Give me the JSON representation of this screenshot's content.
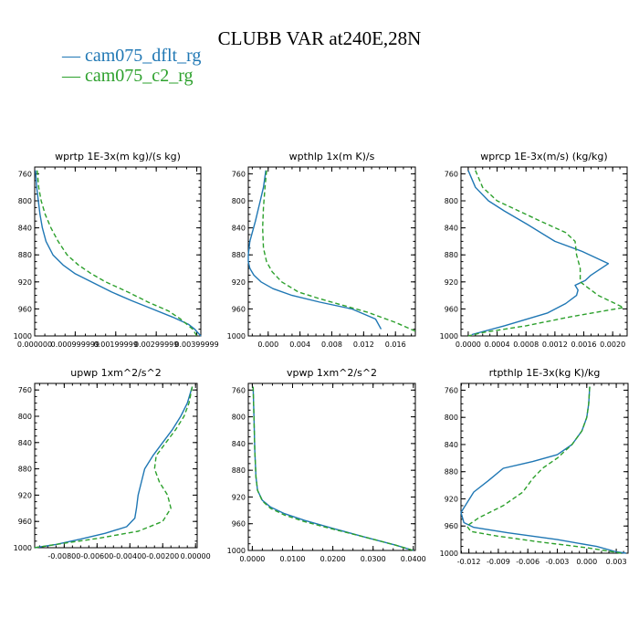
{
  "title": "CLUBB VAR at240E,28N",
  "legend": [
    {
      "label": "cam075_dflt_rg",
      "color": "#1f77b4"
    },
    {
      "label": "cam075_c2_rg",
      "color": "#2ca02c"
    }
  ],
  "chart_data": [
    {
      "type": "line",
      "title": "wprtp  1E-3x(m kg)/(s kg)",
      "xlabel": "",
      "ylabel": "",
      "ylim": [
        1000,
        750
      ],
      "yticks": [
        760,
        800,
        840,
        880,
        920,
        960,
        1000
      ],
      "xlim": [
        0.0,
        0.0041
      ],
      "xtick_values": [
        0.0,
        0.001,
        0.002,
        0.003,
        0.004
      ],
      "xtick_labels": [
        "0.000000",
        "0.000999999",
        "0.00199999",
        "0.00299999",
        "0.00399999"
      ],
      "series": [
        {
          "name": "cam075_dflt_rg",
          "color": "#1f77b4",
          "dash": "",
          "x": [
            2e-05,
            5e-05,
            9e-05,
            0.00013,
            0.00019,
            0.00028,
            0.00045,
            0.0007,
            0.001,
            0.0014,
            0.0019,
            0.0024,
            0.0029,
            0.0034,
            0.0038,
            0.00395,
            0.0041
          ],
          "y": [
            755,
            780,
            800,
            820,
            840,
            860,
            880,
            895,
            908,
            920,
            935,
            948,
            960,
            972,
            983,
            990,
            1000
          ]
        },
        {
          "name": "cam075_c2_rg",
          "color": "#2ca02c",
          "dash": "5,3",
          "x": [
            6e-05,
            0.0001,
            0.00016,
            0.00026,
            0.0004,
            0.00058,
            0.0008,
            0.00108,
            0.0014,
            0.00175,
            0.0023,
            0.0028,
            0.0033,
            0.0036,
            0.0039,
            0.004
          ],
          "y": [
            755,
            780,
            800,
            820,
            840,
            860,
            880,
            895,
            908,
            920,
            935,
            950,
            963,
            975,
            990,
            1000
          ]
        }
      ]
    },
    {
      "type": "line",
      "title": "wpthlp  1x(m K)/s",
      "xlabel": "",
      "ylabel": "",
      "ylim": [
        1000,
        750
      ],
      "yticks": [
        760,
        800,
        840,
        880,
        920,
        960,
        1000
      ],
      "xlim": [
        -0.0025,
        0.0185
      ],
      "xtick_values": [
        0.0,
        0.004,
        0.008,
        0.012,
        0.016
      ],
      "xtick_labels": [
        "0.000",
        "0.004",
        "0.008",
        "0.012",
        "0.016"
      ],
      "series": [
        {
          "name": "cam075_dflt_rg",
          "color": "#1f77b4",
          "dash": "",
          "x": [
            -0.0003,
            -0.0006,
            -0.001,
            -0.0016,
            -0.0023,
            -0.0025,
            -0.0025,
            -0.0023,
            -0.0018,
            -0.0009,
            0.0006,
            0.003,
            0.0065,
            0.0105,
            0.0135,
            0.0142
          ],
          "y": [
            755,
            780,
            800,
            830,
            860,
            880,
            890,
            900,
            910,
            920,
            930,
            940,
            950,
            960,
            975,
            990
          ]
        },
        {
          "name": "cam075_c2_rg",
          "color": "#2ca02c",
          "dash": "5,3",
          "x": [
            -0.0002,
            -0.0004,
            -0.0006,
            -0.0007,
            -0.0006,
            -0.0002,
            0.0005,
            0.0017,
            0.0038,
            0.0065,
            0.0095,
            0.0125,
            0.016,
            0.0185
          ],
          "y": [
            755,
            780,
            810,
            840,
            870,
            890,
            905,
            920,
            935,
            945,
            955,
            965,
            980,
            993
          ]
        }
      ]
    },
    {
      "type": "line",
      "title": "wprcp  1E-3x(m/s) (kg/kg)",
      "xlabel": "",
      "ylabel": "",
      "ylim": [
        1000,
        750
      ],
      "yticks": [
        760,
        800,
        840,
        880,
        920,
        960,
        1000
      ],
      "xlim": [
        -0.0001,
        0.0022
      ],
      "xtick_values": [
        0.0,
        0.0004,
        0.0008,
        0.0012,
        0.0016,
        0.002
      ],
      "xtick_labels": [
        "0.0000",
        "0.0004",
        "0.0008",
        "0.0012",
        "0.0016",
        "0.0020"
      ],
      "series": [
        {
          "name": "cam075_dflt_rg",
          "color": "#1f77b4",
          "dash": "",
          "x": [
            0.0,
            0.0001,
            0.00028,
            0.0005,
            0.00082,
            0.0012,
            0.00158,
            0.00194,
            0.0017,
            0.00162,
            0.00148,
            0.00152,
            0.0015,
            0.00135,
            0.0011,
            0.0005,
            5e-05
          ],
          "y": [
            755,
            780,
            800,
            815,
            835,
            860,
            875,
            893,
            910,
            918,
            925,
            932,
            940,
            952,
            966,
            985,
            998
          ]
        },
        {
          "name": "cam075_c2_rg",
          "color": "#2ca02c",
          "dash": "5,3",
          "x": [
            0.0001,
            0.0002,
            0.0004,
            0.0007,
            0.001,
            0.00135,
            0.00148,
            0.0015,
            0.00155,
            0.00155,
            0.0018,
            0.00215,
            0.0014,
            0.0008,
            0.0002,
            0.0
          ],
          "y": [
            755,
            780,
            800,
            815,
            830,
            847,
            860,
            880,
            900,
            920,
            940,
            958,
            972,
            985,
            995,
            1000
          ]
        }
      ]
    },
    {
      "type": "line",
      "title": "upwp  1xm^2/s^2",
      "xlabel": "",
      "ylabel": "",
      "ylim": [
        1000,
        750
      ],
      "yticks": [
        760,
        800,
        840,
        880,
        920,
        960,
        1000
      ],
      "xlim": [
        -0.0098,
        0.0001
      ],
      "xtick_values": [
        -0.008,
        -0.006,
        -0.004,
        -0.002,
        0.0
      ],
      "xtick_labels": [
        "-0.00800",
        "-0.00600",
        "-0.00400",
        "-0.00200",
        "0.00000"
      ],
      "series": [
        {
          "name": "cam075_dflt_rg",
          "color": "#1f77b4",
          "dash": "",
          "x": [
            -0.0002,
            -0.0005,
            -0.0009,
            -0.0014,
            -0.002,
            -0.0026,
            -0.0031,
            -0.0033,
            -0.0035,
            -0.0036,
            -0.0037,
            -0.0042,
            -0.0055,
            -0.007,
            -0.0085,
            -0.0098
          ],
          "y": [
            755,
            780,
            800,
            820,
            840,
            860,
            880,
            900,
            920,
            940,
            955,
            968,
            978,
            987,
            995,
            1000
          ]
        },
        {
          "name": "cam075_c2_rg",
          "color": "#2ca02c",
          "dash": "5,3",
          "x": [
            -0.0002,
            -0.0004,
            -0.0007,
            -0.0012,
            -0.0018,
            -0.0024,
            -0.0025,
            -0.0022,
            -0.0017,
            -0.0015,
            -0.002,
            -0.0035,
            -0.006,
            -0.0085,
            -0.0098
          ],
          "y": [
            755,
            780,
            800,
            820,
            840,
            860,
            880,
            900,
            920,
            940,
            960,
            975,
            986,
            995,
            1000
          ]
        }
      ]
    },
    {
      "type": "line",
      "title": "vpwp  1xm^2/s^2",
      "xlabel": "",
      "ylabel": "",
      "ylim": [
        1000,
        750
      ],
      "yticks": [
        760,
        800,
        840,
        880,
        920,
        960,
        1000
      ],
      "xlim": [
        -0.001,
        0.0405
      ],
      "xtick_values": [
        0.0,
        0.01,
        0.02,
        0.03,
        0.04
      ],
      "xtick_labels": [
        "0.0000",
        "0.0100",
        "0.0200",
        "0.0300",
        "0.0400"
      ],
      "series": [
        {
          "name": "cam075_dflt_rg",
          "color": "#1f77b4",
          "dash": "",
          "x": [
            0.0002,
            0.0004,
            0.0006,
            0.0009,
            0.0013,
            0.0025,
            0.0045,
            0.008,
            0.013,
            0.02,
            0.028,
            0.0355,
            0.04
          ],
          "y": [
            755,
            800,
            850,
            890,
            910,
            925,
            935,
            945,
            955,
            967,
            980,
            992,
            1000
          ]
        },
        {
          "name": "cam075_c2_rg",
          "color": "#2ca02c",
          "dash": "5,3",
          "x": [
            0.0002,
            0.0004,
            0.0006,
            0.0009,
            0.0013,
            0.0025,
            0.0045,
            0.008,
            0.013,
            0.02,
            0.028,
            0.0355,
            0.04
          ],
          "y": [
            755,
            800,
            850,
            890,
            910,
            926,
            937,
            947,
            957,
            968,
            980,
            992,
            1000
          ]
        }
      ]
    },
    {
      "type": "line",
      "title": "rtpthlp  1E-3x(kg K)/kg",
      "xlabel": "",
      "ylabel": "",
      "ylim": [
        1000,
        750
      ],
      "yticks": [
        760,
        800,
        840,
        880,
        920,
        960,
        1000
      ],
      "xlim": [
        -0.0128,
        0.0042
      ],
      "xtick_values": [
        -0.012,
        -0.009,
        -0.006,
        -0.003,
        0.0,
        0.003
      ],
      "xtick_labels": [
        "-0.012",
        "-0.009",
        "-0.006",
        "-0.003",
        "0.000",
        "0.003"
      ],
      "series": [
        {
          "name": "cam075_dflt_rg",
          "color": "#1f77b4",
          "dash": "",
          "x": [
            0.0003,
            0.0002,
            0.0,
            -0.0005,
            -0.0015,
            -0.003,
            -0.0055,
            -0.0085,
            -0.01,
            -0.0115,
            -0.0128,
            -0.0125,
            -0.0115,
            -0.008,
            -0.003,
            0.001,
            0.003,
            0.004
          ],
          "y": [
            755,
            780,
            800,
            820,
            840,
            855,
            865,
            875,
            893,
            910,
            940,
            955,
            962,
            970,
            980,
            990,
            998,
            1000
          ]
        },
        {
          "name": "cam075_c2_rg",
          "color": "#2ca02c",
          "dash": "5,3",
          "x": [
            0.0003,
            0.0002,
            0.0,
            -0.0005,
            -0.0015,
            -0.003,
            -0.0045,
            -0.0055,
            -0.0065,
            -0.0085,
            -0.011,
            -0.0122,
            -0.0118,
            -0.009,
            -0.005,
            0.0,
            0.0035
          ],
          "y": [
            755,
            780,
            800,
            820,
            840,
            860,
            875,
            890,
            910,
            930,
            948,
            960,
            968,
            975,
            983,
            992,
            1000
          ]
        }
      ]
    }
  ]
}
